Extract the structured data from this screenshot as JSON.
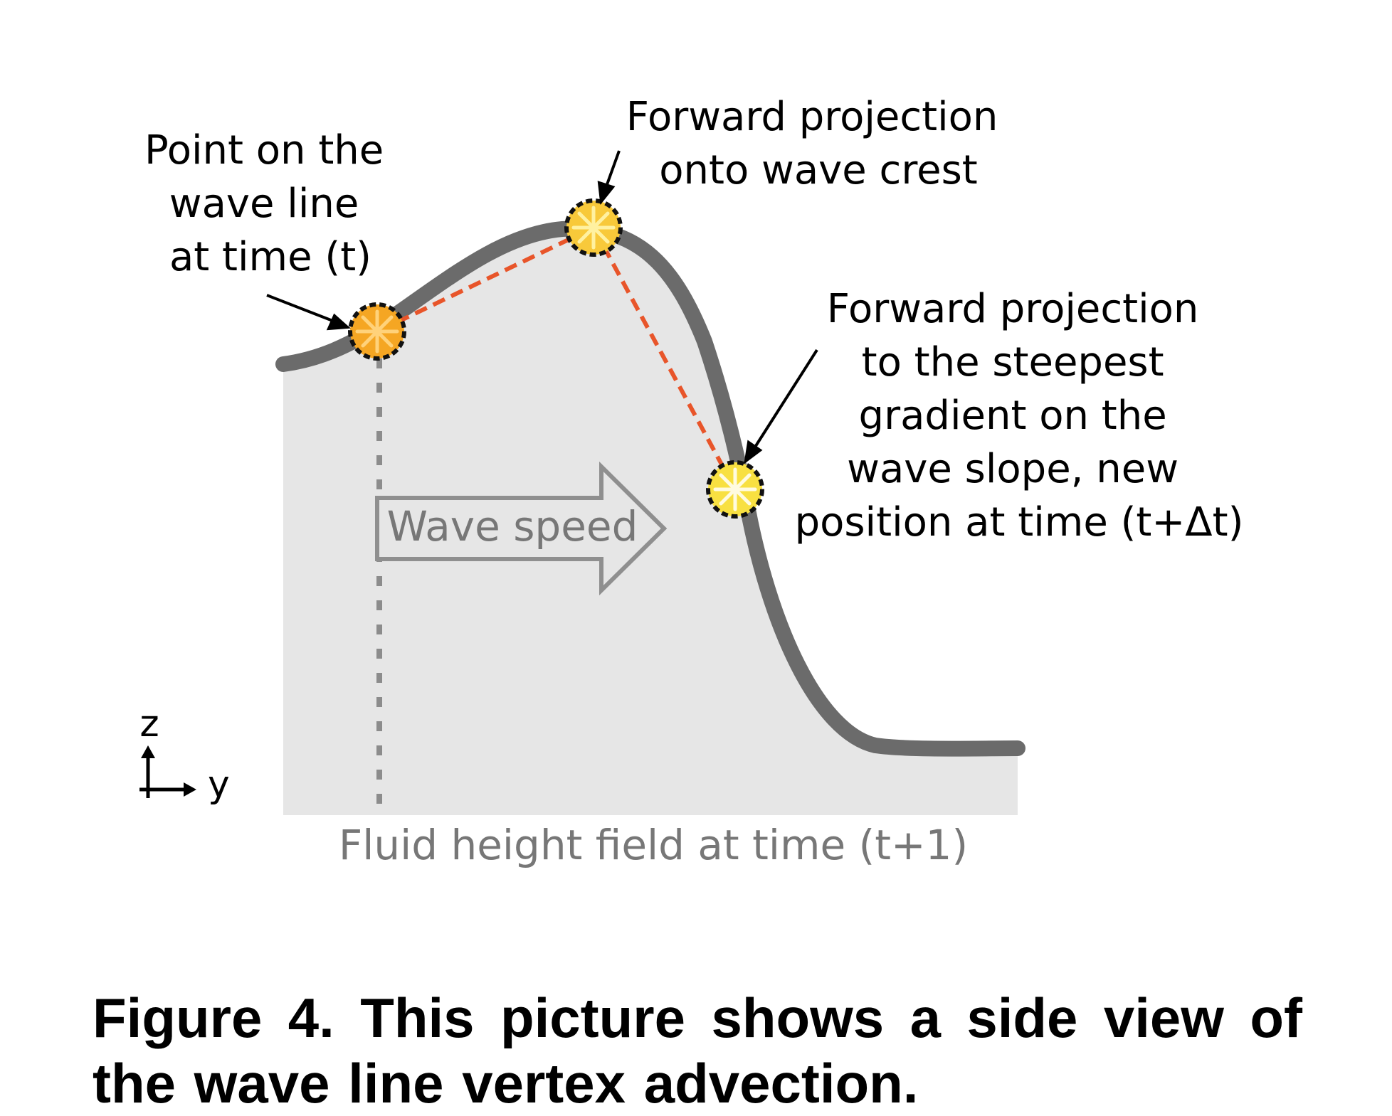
{
  "diagram": {
    "label_point_t": [
      "Point on the",
      "wave line",
      "at time (t)"
    ],
    "label_crest": [
      "Forward projection",
      "onto wave crest"
    ],
    "label_steepest": [
      "Forward projection",
      "to the steepest",
      "gradient on the",
      "wave slope, new",
      "position at time (t+Δt)"
    ],
    "label_wave_speed": "Wave speed",
    "label_height_field": "Fluid height field at time (t+1)",
    "axis_z": "z",
    "axis_y": "y",
    "icons": [
      "point-marker-icon",
      "wave-speed-arrow-icon",
      "axis-icon"
    ],
    "colors": {
      "fluid_fill": "#e6e6e6",
      "wave_line": "#6b6b6b",
      "projection_path": "#e8552a",
      "marker_orange": "#f5a623",
      "marker_yellow": "#f8e041",
      "label_gray": "#777777"
    }
  },
  "caption": "Figure 4. This picture shows a side view of the wave line vertex advection."
}
